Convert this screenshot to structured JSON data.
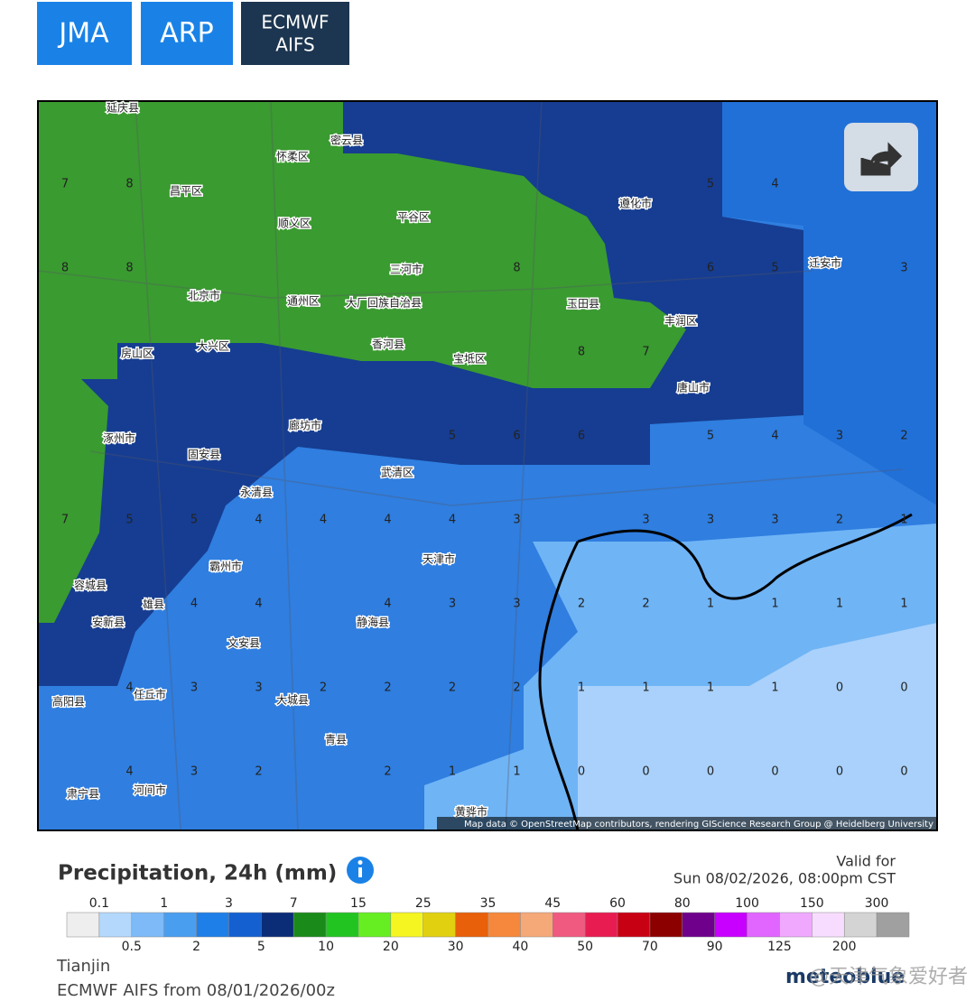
{
  "tabs": [
    {
      "label": "JMA"
    },
    {
      "label": "ARP"
    },
    {
      "lines": [
        "ECMWF",
        "AIFS"
      ]
    }
  ],
  "map": {
    "places": [
      "延庆县",
      "怀柔区",
      "密云县",
      "昌平区",
      "顺义区",
      "平谷区",
      "遵化市",
      "北京市",
      "通州区",
      "三河市",
      "大厂回族自治县",
      "玉田县",
      "丰润区",
      "迁安市",
      "房山区",
      "大兴区",
      "香河县",
      "宝坻区",
      "唐山市",
      "涿州市",
      "固安县",
      "廊坊市",
      "武清区",
      "永清县",
      "天津市",
      "霸州市",
      "安新县",
      "文安县",
      "静海县",
      "任丘市",
      "高阳县",
      "大城县",
      "青县",
      "河间市",
      "黄骅市",
      "肃宁县",
      "容城县",
      "雄县"
    ],
    "grid": [
      [
        7,
        8,
        null,
        null,
        null,
        null,
        null,
        null,
        null,
        null,
        5,
        4,
        null,
        null
      ],
      [
        8,
        8,
        null,
        null,
        null,
        null,
        null,
        8,
        null,
        null,
        6,
        5,
        null,
        3
      ],
      [
        null,
        null,
        null,
        null,
        null,
        null,
        null,
        null,
        8,
        7,
        null,
        null,
        null,
        null
      ],
      [
        null,
        null,
        null,
        null,
        null,
        null,
        5,
        6,
        6,
        null,
        5,
        4,
        3,
        2
      ],
      [
        7,
        5,
        5,
        4,
        4,
        4,
        4,
        3,
        null,
        3,
        3,
        3,
        2,
        1
      ],
      [
        null,
        null,
        4,
        4,
        null,
        4,
        3,
        3,
        2,
        2,
        1,
        1,
        1,
        1
      ],
      [
        null,
        4,
        3,
        3,
        2,
        2,
        2,
        2,
        1,
        1,
        1,
        1,
        0,
        0
      ],
      [
        null,
        4,
        3,
        2,
        null,
        2,
        1,
        1,
        0,
        0,
        0,
        0,
        0,
        0
      ]
    ],
    "attribution": "Map data © OpenStreetMap contributors, rendering GIScience Research Group @ Heidelberg University"
  },
  "legend": {
    "title": "Precipitation, 24h (mm)",
    "thresholds_top": [
      0.1,
      1,
      3,
      7,
      15,
      25,
      35,
      45,
      60,
      80,
      100,
      150,
      300
    ],
    "thresholds_bottom": [
      0.5,
      2,
      5,
      10,
      20,
      30,
      40,
      50,
      70,
      90,
      125,
      200
    ],
    "colors": [
      "#eeeeee",
      "#b3d8fc",
      "#7dbaf7",
      "#4a9ef0",
      "#1f7fe8",
      "#1560d0",
      "#0b2c77",
      "#1a8a1a",
      "#22c422",
      "#66ee22",
      "#f5f521",
      "#e0d010",
      "#e8600a",
      "#f5883c",
      "#f5a878",
      "#f05a80",
      "#e81c50",
      "#c80014",
      "#8c0000",
      "#6e008c",
      "#c800ff",
      "#e066ff",
      "#f0a8ff",
      "#f8dcff",
      "#d4d4d4",
      "#a0a0a0"
    ]
  },
  "valid": {
    "label": "Valid for",
    "time": "Sun 08/02/2026, 08:00pm CST"
  },
  "footer": {
    "location": "Tianjin",
    "model": "ECMWF AIFS from 08/01/2026/00z",
    "watermark": "@天津气象爱好者",
    "brand": "meteoblue"
  }
}
